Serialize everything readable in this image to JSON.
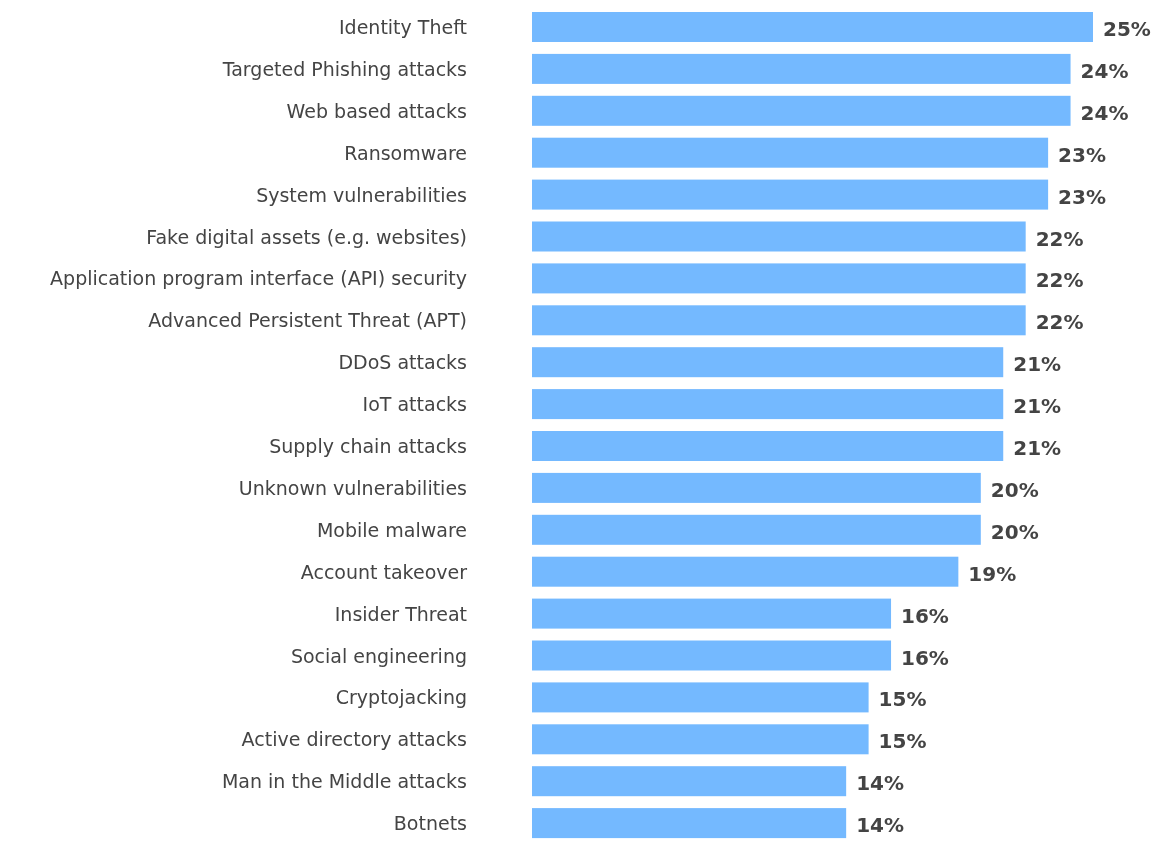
{
  "chart_data": {
    "type": "bar",
    "orientation": "horizontal",
    "categories": [
      "Identity Theft",
      "Targeted Phishing attacks",
      "Web based attacks",
      "Ransomware",
      "System vulnerabilities",
      "Fake digital assets (e.g. websites)",
      "Application program interface (API) security",
      "Advanced Persistent Threat (APT)",
      "DDoS attacks",
      "IoT attacks",
      "Supply chain attacks",
      "Unknown vulnerabilities",
      "Mobile malware",
      "Account takeover",
      "Insider Threat",
      "Social engineering",
      "Cryptojacking",
      "Active directory attacks",
      "Man in the Middle attacks",
      "Botnets"
    ],
    "values": [
      25,
      24,
      24,
      23,
      23,
      22,
      22,
      22,
      21,
      21,
      21,
      20,
      20,
      19,
      16,
      16,
      15,
      15,
      14,
      14
    ],
    "value_labels": [
      "25%",
      "24%",
      "24%",
      "23%",
      "23%",
      "22%",
      "22%",
      "22%",
      "21%",
      "21%",
      "21%",
      "20%",
      "20%",
      "19%",
      "16%",
      "16%",
      "15%",
      "15%",
      "14%",
      "14%"
    ],
    "color": "#74b9ff"
  }
}
